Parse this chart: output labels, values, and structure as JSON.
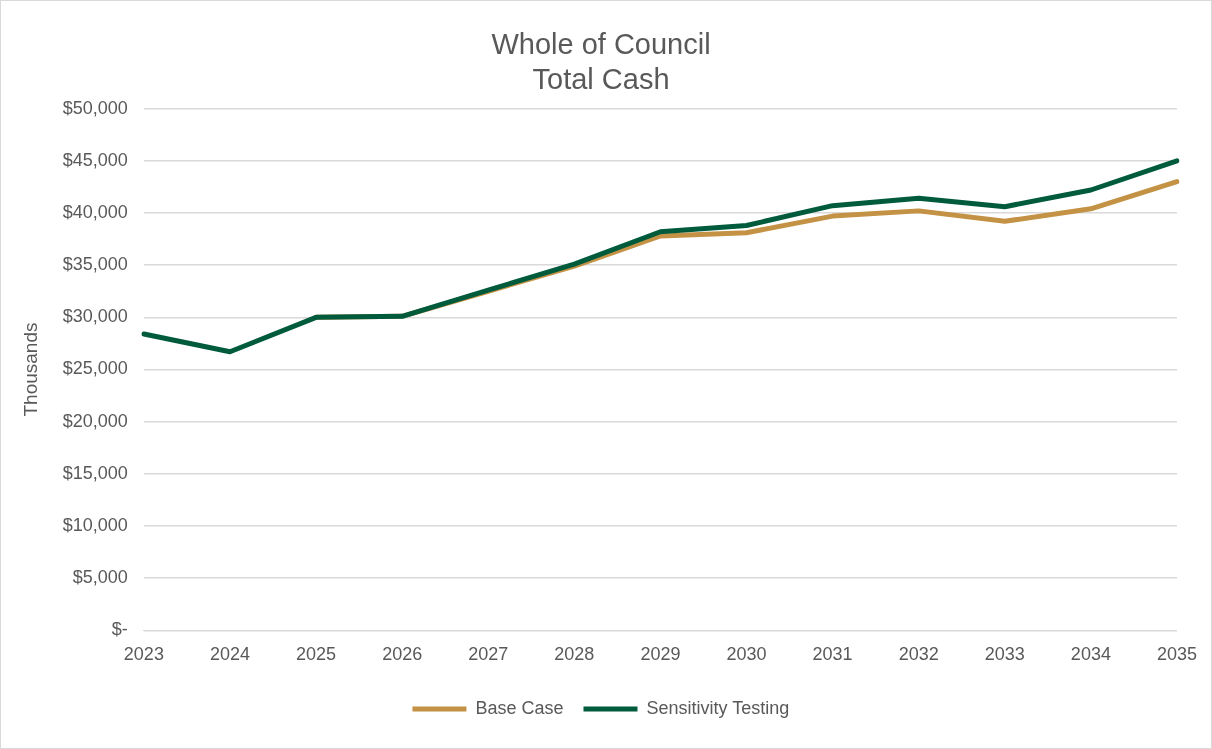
{
  "chart_data": {
    "type": "line",
    "title": "Whole of Council\nTotal Cash",
    "ylabel": "Thousands",
    "categories": [
      "2023",
      "2024",
      "2025",
      "2026",
      "2027",
      "2028",
      "2029",
      "2030",
      "2031",
      "2032",
      "2033",
      "2034",
      "2035"
    ],
    "series": [
      {
        "name": "Base Case",
        "color": "#c49245",
        "values": [
          null,
          null,
          30000,
          30100,
          32500,
          34900,
          37800,
          38100,
          39700,
          40200,
          39200,
          40400,
          43000
        ]
      },
      {
        "name": "Sensitivity Testing",
        "color": "#005a3c",
        "values": [
          28400,
          26700,
          30000,
          30100,
          32600,
          35100,
          38200,
          38800,
          40700,
          41400,
          40600,
          42200,
          45000
        ]
      }
    ],
    "ylim": [
      0,
      50000
    ],
    "yticks": [
      {
        "value": 0,
        "label": "$-"
      },
      {
        "value": 5000,
        "label": "$5,000"
      },
      {
        "value": 10000,
        "label": "$10,000"
      },
      {
        "value": 15000,
        "label": "$15,000"
      },
      {
        "value": 20000,
        "label": "$20,000"
      },
      {
        "value": 25000,
        "label": "$25,000"
      },
      {
        "value": 30000,
        "label": "$30,000"
      },
      {
        "value": 35000,
        "label": "$35,000"
      },
      {
        "value": 40000,
        "label": "$40,000"
      },
      {
        "value": 45000,
        "label": "$45,000"
      },
      {
        "value": 50000,
        "label": "$50,000"
      }
    ],
    "grid": "y",
    "legend": "bottom",
    "marker": "none",
    "line_style": "solid"
  }
}
